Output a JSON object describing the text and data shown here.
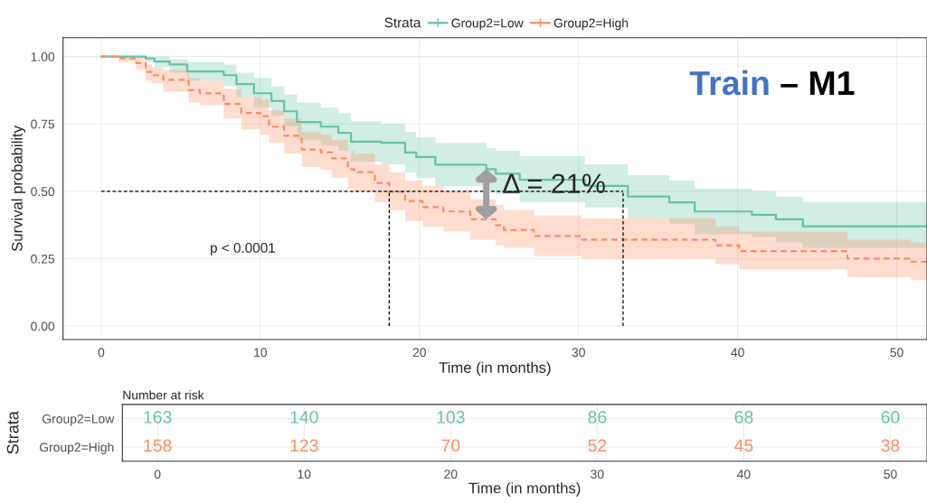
{
  "chart_data": [
    {
      "type": "step",
      "xlabel": "Time (in months)",
      "ylabel": "Survival probability",
      "legend_title": "Strata",
      "legend": "top",
      "grid": true,
      "xlim": [
        -2.4,
        51.9
      ],
      "xticks": [
        0,
        10,
        20,
        30,
        40,
        50
      ],
      "ylim": [
        -0.05,
        1.07
      ],
      "yticks": [
        {
          "value": 0,
          "label": "0.00"
        },
        {
          "value": 0.25,
          "label": "0.25"
        },
        {
          "value": 0.5,
          "label": "0.50"
        },
        {
          "value": 0.75,
          "label": "0.75"
        },
        {
          "value": 1,
          "label": "1.00"
        }
      ],
      "series": [
        {
          "name": "Group2=Low",
          "color": "#66c2a5",
          "line_style": "solid",
          "x": [
            0,
            2.8,
            3.35,
            4.3,
            5.4,
            7.7,
            8.5,
            9.6,
            10.7,
            11.5,
            12.3,
            13.8,
            14.9,
            15.7,
            17.6,
            19.1,
            19.8,
            21.0,
            24.2,
            24.8,
            26.3,
            30.4,
            33.1,
            35.7,
            37.3,
            40.9,
            42.4,
            44.1,
            51.9
          ],
          "values": [
            1.0,
            0.993,
            0.982,
            0.971,
            0.945,
            0.931,
            0.898,
            0.864,
            0.835,
            0.797,
            0.757,
            0.74,
            0.717,
            0.684,
            0.68,
            0.644,
            0.627,
            0.599,
            0.582,
            0.565,
            0.543,
            0.52,
            0.481,
            0.459,
            0.425,
            0.413,
            0.396,
            0.37,
            0.37
          ],
          "lower": [
            1.0,
            0.98,
            0.96,
            0.94,
            0.91,
            0.89,
            0.85,
            0.81,
            0.78,
            0.74,
            0.69,
            0.67,
            0.65,
            0.61,
            0.6,
            0.57,
            0.55,
            0.52,
            0.5,
            0.49,
            0.46,
            0.44,
            0.4,
            0.38,
            0.34,
            0.33,
            0.31,
            0.29,
            0.29
          ],
          "upper": [
            1.0,
            1.0,
            1.0,
            0.99,
            0.98,
            0.97,
            0.94,
            0.92,
            0.89,
            0.86,
            0.83,
            0.81,
            0.79,
            0.76,
            0.75,
            0.72,
            0.7,
            0.68,
            0.66,
            0.65,
            0.63,
            0.6,
            0.56,
            0.54,
            0.51,
            0.5,
            0.48,
            0.46,
            0.46
          ]
        },
        {
          "name": "Group2=High",
          "color": "#fc8d62",
          "line_style": "dashed",
          "x": [
            0,
            1.1,
            2.2,
            2.8,
            3.2,
            3.9,
            5.2,
            5.5,
            6.2,
            7.7,
            8.8,
            10.0,
            10.55,
            11.5,
            12.6,
            13.8,
            14.5,
            15.5,
            15.9,
            17.2,
            18.1,
            19.1,
            20.2,
            21.5,
            23.2,
            24.8,
            25.3,
            27.2,
            30.2,
            38.6,
            40.1,
            46.9,
            50.9,
            51.9
          ],
          "values": [
            1.0,
            0.993,
            0.976,
            0.943,
            0.931,
            0.914,
            0.909,
            0.875,
            0.864,
            0.824,
            0.791,
            0.779,
            0.74,
            0.706,
            0.655,
            0.645,
            0.622,
            0.582,
            0.571,
            0.531,
            0.498,
            0.464,
            0.441,
            0.425,
            0.396,
            0.374,
            0.357,
            0.334,
            0.321,
            0.3,
            0.278,
            0.25,
            0.239,
            0.223
          ],
          "lower": [
            1.0,
            0.98,
            0.95,
            0.91,
            0.9,
            0.87,
            0.87,
            0.83,
            0.82,
            0.77,
            0.73,
            0.71,
            0.68,
            0.64,
            0.59,
            0.58,
            0.55,
            0.51,
            0.5,
            0.46,
            0.43,
            0.39,
            0.37,
            0.35,
            0.32,
            0.3,
            0.29,
            0.26,
            0.25,
            0.23,
            0.21,
            0.18,
            0.17,
            0.15
          ],
          "upper": [
            1.0,
            1.0,
            1.0,
            0.97,
            0.96,
            0.95,
            0.95,
            0.92,
            0.91,
            0.88,
            0.85,
            0.84,
            0.8,
            0.77,
            0.72,
            0.71,
            0.69,
            0.65,
            0.64,
            0.6,
            0.57,
            0.54,
            0.52,
            0.5,
            0.47,
            0.45,
            0.43,
            0.41,
            0.4,
            0.37,
            0.35,
            0.32,
            0.31,
            0.3
          ]
        }
      ],
      "ref_lines": [
        {
          "axis": "y",
          "value": 0.5,
          "color": "#000000",
          "line_style": "dashed"
        },
        {
          "axis": "x",
          "value": 18.1,
          "color": "#000000",
          "line_style": "dashed"
        },
        {
          "axis": "x",
          "value": 32.8,
          "color": "#000000",
          "line_style": "dashed"
        }
      ],
      "annotations": [
        "p < 0.0001",
        {
          "text": "Δ = 21%",
          "x": 24.2,
          "y": 0.47
        },
        "Train – M1"
      ]
    },
    {
      "type": "heatmap",
      "title": "Number at risk",
      "xlabel": "Time (in months)",
      "ylabel": "Strata",
      "grid": true,
      "data_labels": true,
      "xlim": [
        -2.4,
        52.5
      ],
      "xticks": [
        0,
        10,
        20,
        30,
        40,
        50
      ],
      "x": [
        0,
        10,
        20,
        30,
        40,
        50
      ],
      "y_categories": [
        "Group2=Low",
        "Group2=High"
      ],
      "colors": [
        "#66c2a5",
        "#fc8d62"
      ],
      "cells": [
        [
          163,
          140,
          103,
          86,
          68,
          60
        ],
        [
          158,
          123,
          70,
          52,
          45,
          38
        ]
      ]
    }
  ]
}
